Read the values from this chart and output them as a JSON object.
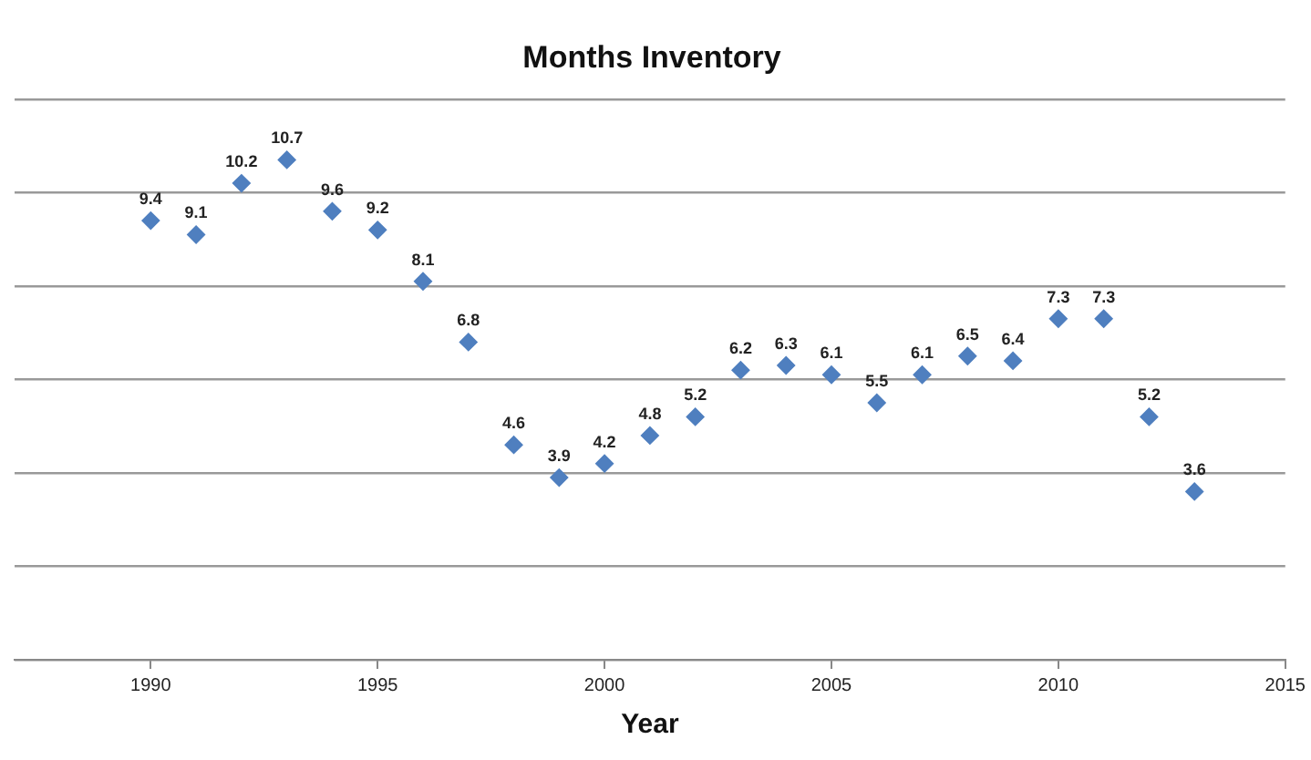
{
  "chart_data": {
    "type": "scatter",
    "title": "Months Inventory",
    "xlabel": "Year",
    "x": [
      1990,
      1991,
      1992,
      1993,
      1994,
      1995,
      1996,
      1997,
      1998,
      1999,
      2000,
      2001,
      2002,
      2003,
      2004,
      2005,
      2006,
      2007,
      2008,
      2009,
      2010,
      2011,
      2012,
      2013
    ],
    "series": [
      {
        "color": "#4f7fbf",
        "values": [
          9.4,
          9.1,
          10.2,
          10.7,
          9.6,
          9.2,
          8.1,
          6.8,
          4.6,
          3.9,
          4.2,
          4.8,
          5.2,
          6.2,
          6.3,
          6.1,
          5.5,
          6.1,
          6.5,
          6.4,
          7.3,
          7.3,
          5.2,
          3.6
        ]
      }
    ],
    "xlim": [
      1987,
      2015
    ],
    "xticks": [
      1990,
      1995,
      2000,
      2005,
      2010,
      2015
    ],
    "ylim": [
      0,
      12
    ],
    "yticks": [
      {
        "value": 0,
        "label": null
      },
      {
        "value": 2,
        "label": null
      },
      {
        "value": 4,
        "label": null
      },
      {
        "value": 6,
        "label": null
      },
      {
        "value": 8,
        "label": null
      },
      {
        "value": 10,
        "label": null
      },
      {
        "value": 12,
        "label": null
      }
    ],
    "tick_labels": "x",
    "grid": "y",
    "marker": "diamond",
    "data_labels": true,
    "legend": false
  }
}
